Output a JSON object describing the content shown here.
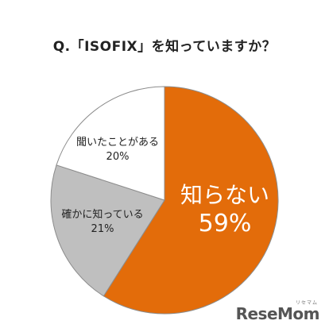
{
  "chart_data": {
    "type": "pie",
    "title": "Q.「ISOFIX」を知っていますか？",
    "slices": [
      {
        "label": "知らない",
        "value": 59,
        "display": "59%",
        "color": "#E36C0A"
      },
      {
        "label": "確かに知っている",
        "value": 21,
        "display": "21%",
        "color": "#BFBFBF"
      },
      {
        "label": "聞いたことがある",
        "value": 20,
        "display": "20%",
        "color": "#FFFFFF"
      }
    ],
    "start": "12 o'clock",
    "direction": "clockwise",
    "legend": "none"
  },
  "brand": {
    "name": "ReseMom",
    "sub": "リセマム"
  }
}
